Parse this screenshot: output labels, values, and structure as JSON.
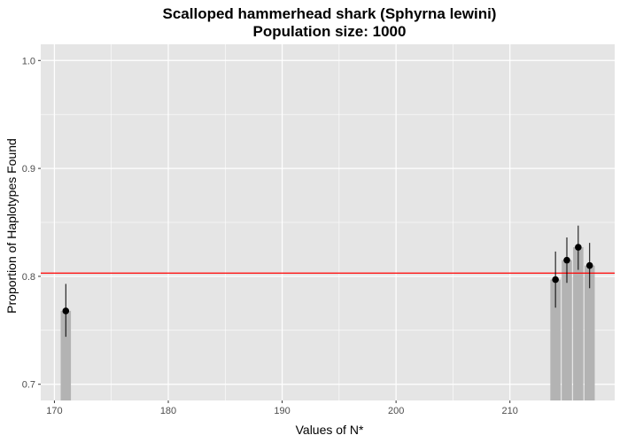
{
  "chart_data": {
    "type": "bar",
    "title": "Scalloped hammerhead shark (Sphyrna lewini)",
    "subtitle": "Population size: 1000",
    "xlabel": "Values of N*",
    "ylabel": "Proportion of Haplotypes Found",
    "xlim": [
      168.8,
      219.2
    ],
    "ylim": [
      0.685,
      1.015
    ],
    "x_ticks": [
      170,
      180,
      190,
      200,
      210
    ],
    "y_ticks": [
      0.7,
      0.8,
      0.9,
      1.0
    ],
    "y_tick_labels": [
      "0.7",
      "0.8",
      "0.9",
      "1.0"
    ],
    "grid": true,
    "bars": [
      {
        "x": 171,
        "mean": 0.768,
        "lower": 0.744,
        "upper": 0.793
      },
      {
        "x": 214,
        "mean": 0.797,
        "lower": 0.771,
        "upper": 0.823
      },
      {
        "x": 215,
        "mean": 0.815,
        "lower": 0.794,
        "upper": 0.836
      },
      {
        "x": 216,
        "mean": 0.827,
        "lower": 0.806,
        "upper": 0.847
      },
      {
        "x": 217,
        "mean": 0.81,
        "lower": 0.789,
        "upper": 0.831
      }
    ],
    "reference_line": {
      "y": 0.803,
      "color": "#ff0000"
    },
    "colors": {
      "panel": "#e5e5e5",
      "grid": "#ffffff",
      "bar": "#b3b3b3",
      "point": "#000000"
    }
  }
}
